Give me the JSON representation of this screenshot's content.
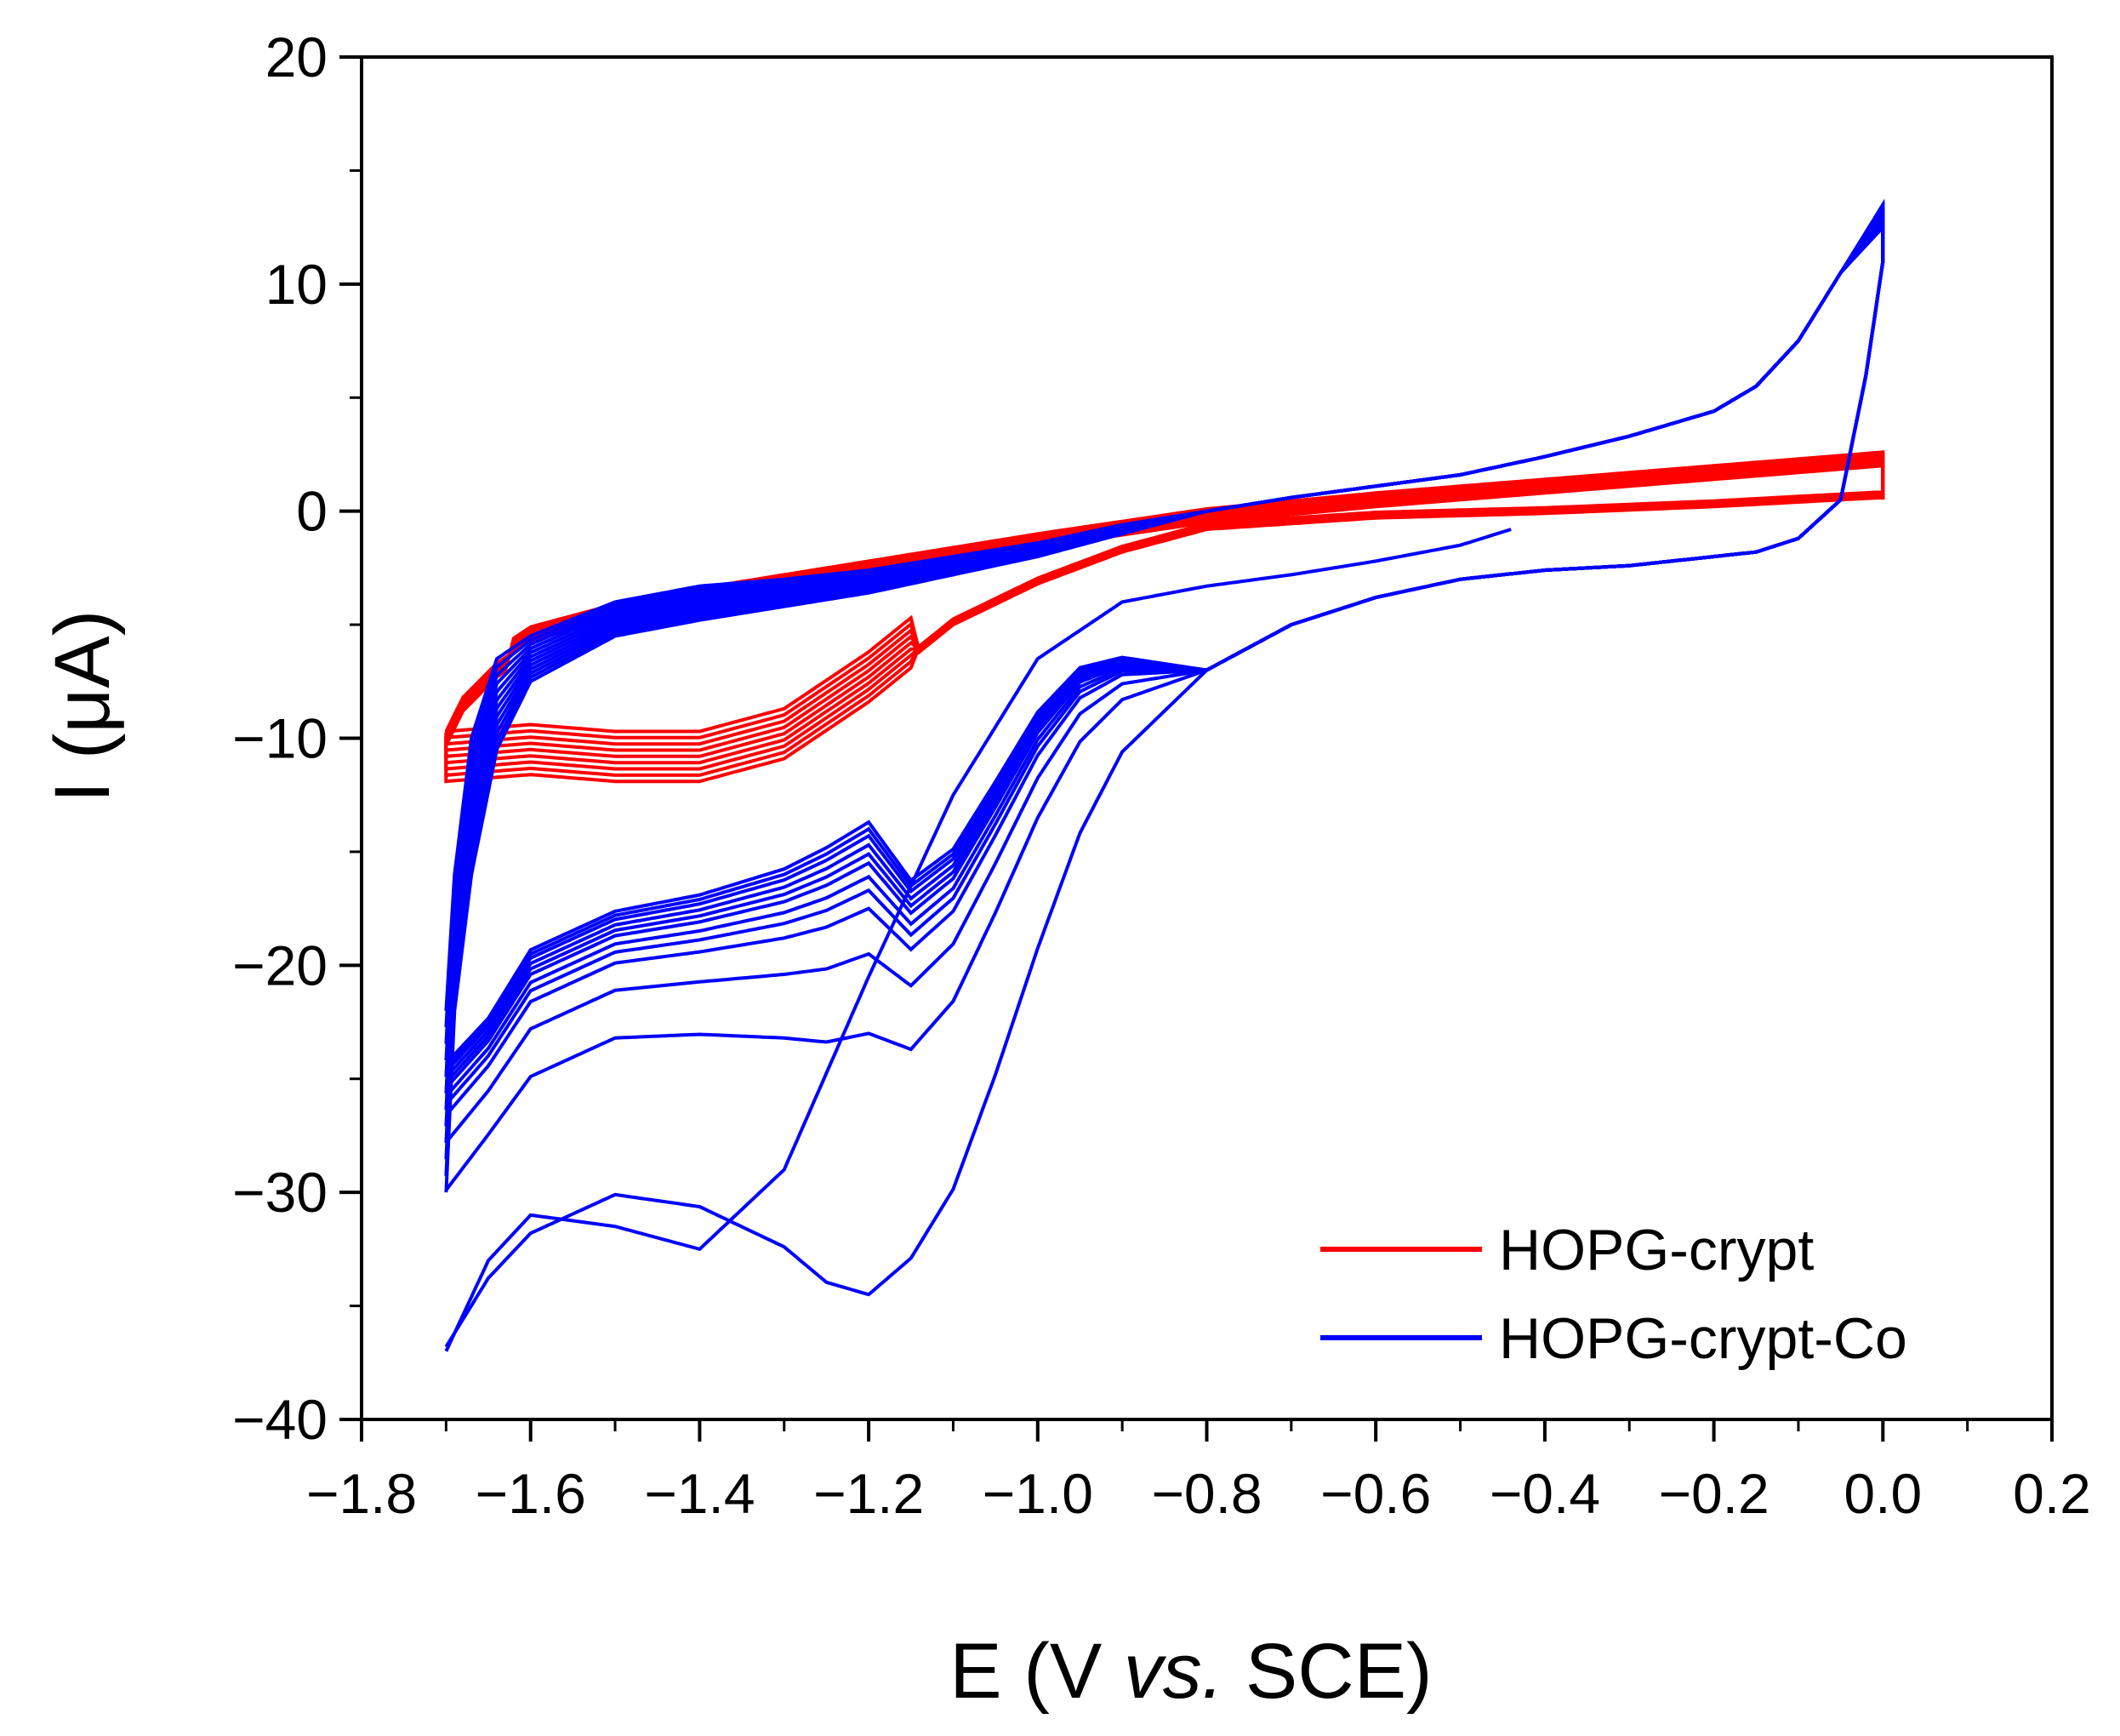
{
  "chart_data": {
    "type": "line",
    "title": "",
    "xlabel": {
      "main": "E (V ",
      "italic": "vs.",
      "tail": " SCE)"
    },
    "ylabel": "I (μA)",
    "xlim": [
      -1.8,
      0.2
    ],
    "ylim": [
      -40,
      20
    ],
    "xticks": [
      -1.8,
      -1.6,
      -1.4,
      -1.2,
      -1.0,
      -0.8,
      -0.6,
      -0.4,
      -0.2,
      0.0,
      0.2
    ],
    "xtick_labels": [
      "−1.8",
      "−1.6",
      "−1.4",
      "−1.2",
      "−1.0",
      "−0.8",
      "−0.6",
      "−0.4",
      "−0.2",
      "0.0",
      "0.2"
    ],
    "yticks": [
      20,
      10,
      0,
      -10,
      -20,
      -30,
      -40
    ],
    "ytick_labels": [
      "20",
      "10",
      "0",
      "−10",
      "−20",
      "−30",
      "−40"
    ],
    "x_minor_step": 0.1,
    "y_minor_step": 5,
    "grid": false,
    "legend_position": "bottom-right",
    "series": [
      {
        "name": "HOPG-crypt",
        "color": "#ff0000",
        "cycles": 9,
        "forward_anchor": {
          "x": [
            -1.7,
            -1.68,
            -1.64,
            -1.6,
            -1.5,
            -1.4,
            -1.3,
            -1.2,
            -1.0,
            -0.8,
            -0.6,
            -0.4,
            -0.2,
            0.0
          ],
          "i": [
            -9.5,
            -8.0,
            -6.5,
            -5.5,
            -4.5,
            -3.8,
            -3.2,
            -2.6,
            -1.4,
            -0.3,
            0.4,
            1.0,
            1.6,
            2.2
          ]
        },
        "reverse_anchor": {
          "x": [
            0.0,
            -0.2,
            -0.4,
            -0.6,
            -0.8,
            -0.9,
            -1.0,
            -1.1,
            -1.2,
            -1.3,
            -1.4,
            -1.5,
            -1.6,
            -1.7
          ],
          "i": [
            0.6,
            0.2,
            -0.1,
            -0.3,
            -0.8,
            -1.8,
            -3.2,
            -5.0,
            -8.0,
            -10.5,
            -11.5,
            -11.5,
            -11.2,
            -11.5
          ]
        }
      },
      {
        "name": "HOPG-crypt-Co",
        "color": "#0000ff",
        "cycles": 12,
        "first_sweep": {
          "x": [
            -0.44,
            -0.5,
            -0.6,
            -0.7,
            -0.8,
            -0.9,
            -1.0,
            -1.1,
            -1.2,
            -1.3,
            -1.4,
            -1.5,
            -1.6,
            -1.65,
            -1.7
          ],
          "i": [
            -0.8,
            -1.5,
            -2.2,
            -2.8,
            -3.3,
            -4.0,
            -6.5,
            -12.5,
            -20.5,
            -29.0,
            -32.5,
            -31.5,
            -31.0,
            -33.0,
            -37.0
          ]
        },
        "reverse_peak_currents": [
          -34.0,
          -22.5,
          -19.0,
          -17.0,
          -16.2,
          -15.6,
          -15.0,
          -14.6,
          -14.2,
          -13.8,
          -13.5,
          -13.2
        ],
        "anodic_peak": {
          "x": 0.0,
          "i": 13.5
        }
      }
    ]
  }
}
